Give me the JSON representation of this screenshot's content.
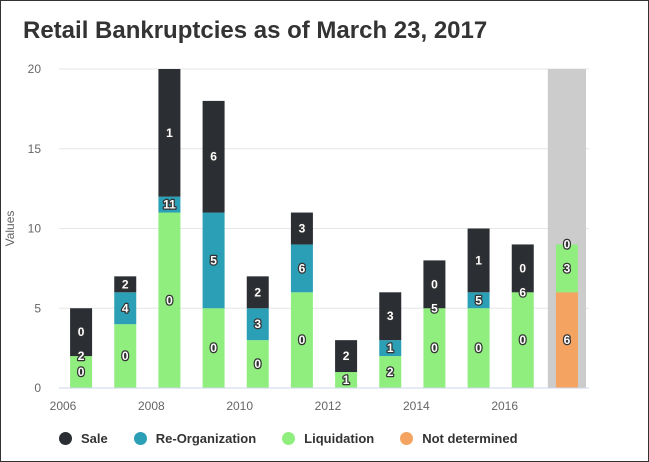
{
  "title": "Retail Bankruptcies as of March 23, 2017",
  "chart_data": {
    "type": "bar",
    "stacked": true,
    "title": "Retail Bankruptcies as of March 23, 2017",
    "ylabel": "Values",
    "xlabel": "",
    "ylim": [
      0,
      20
    ],
    "yticks": [
      0,
      5,
      10,
      15,
      20
    ],
    "categories": [
      "2006",
      "2007",
      "2008",
      "2009",
      "2010",
      "2011",
      "2012",
      "2013",
      "2014",
      "2015",
      "2016",
      "2017"
    ],
    "xtick_labels": [
      "2006",
      "",
      "2008",
      "",
      "2010",
      "",
      "2012",
      "",
      "2014",
      "",
      "2016",
      ""
    ],
    "highlight_category": "2017",
    "series": [
      {
        "name": "Not determined",
        "color": "#f4a460",
        "values": [
          null,
          null,
          null,
          null,
          null,
          null,
          null,
          null,
          null,
          null,
          null,
          6
        ]
      },
      {
        "name": "Liquidation",
        "color": "#90ee7e",
        "values": [
          2,
          4,
          11,
          5,
          3,
          6,
          1,
          2,
          5,
          5,
          6,
          3
        ]
      },
      {
        "name": "Re-Organization",
        "color": "#2b9fb5",
        "values": [
          0,
          2,
          1,
          6,
          2,
          3,
          null,
          1,
          0,
          1,
          0,
          0
        ]
      },
      {
        "name": "Sale",
        "color": "#2b2e33",
        "values": [
          3,
          1,
          8,
          7,
          2,
          2,
          2,
          3,
          3,
          4,
          3,
          null
        ]
      }
    ],
    "data_labels": [
      [
        "0",
        "2",
        "0",
        "3"
      ],
      [
        "0",
        "4",
        "2",
        "1"
      ],
      [
        "0",
        "11",
        "1",
        "8"
      ],
      [
        "0",
        "5",
        "6",
        "7"
      ],
      [
        "0",
        "3",
        "2",
        "2"
      ],
      [
        "0",
        "6",
        "3",
        "2"
      ],
      [
        "1",
        "2"
      ],
      [
        "2",
        "1",
        "3"
      ],
      [
        "0",
        "5",
        "0",
        "3"
      ],
      [
        "0",
        "5",
        "1",
        "4"
      ],
      [
        "0",
        "6",
        "0",
        "3"
      ],
      [
        "6",
        "3",
        "0"
      ]
    ],
    "legend": {
      "position": "bottom-left",
      "items": [
        {
          "name": "Sale",
          "color": "#2b2e33"
        },
        {
          "name": "Re-Organization",
          "color": "#2b9fb5"
        },
        {
          "name": "Liquidation",
          "color": "#90ee7e"
        },
        {
          "name": "Not determined",
          "color": "#f4a460"
        }
      ]
    },
    "grid": true
  }
}
